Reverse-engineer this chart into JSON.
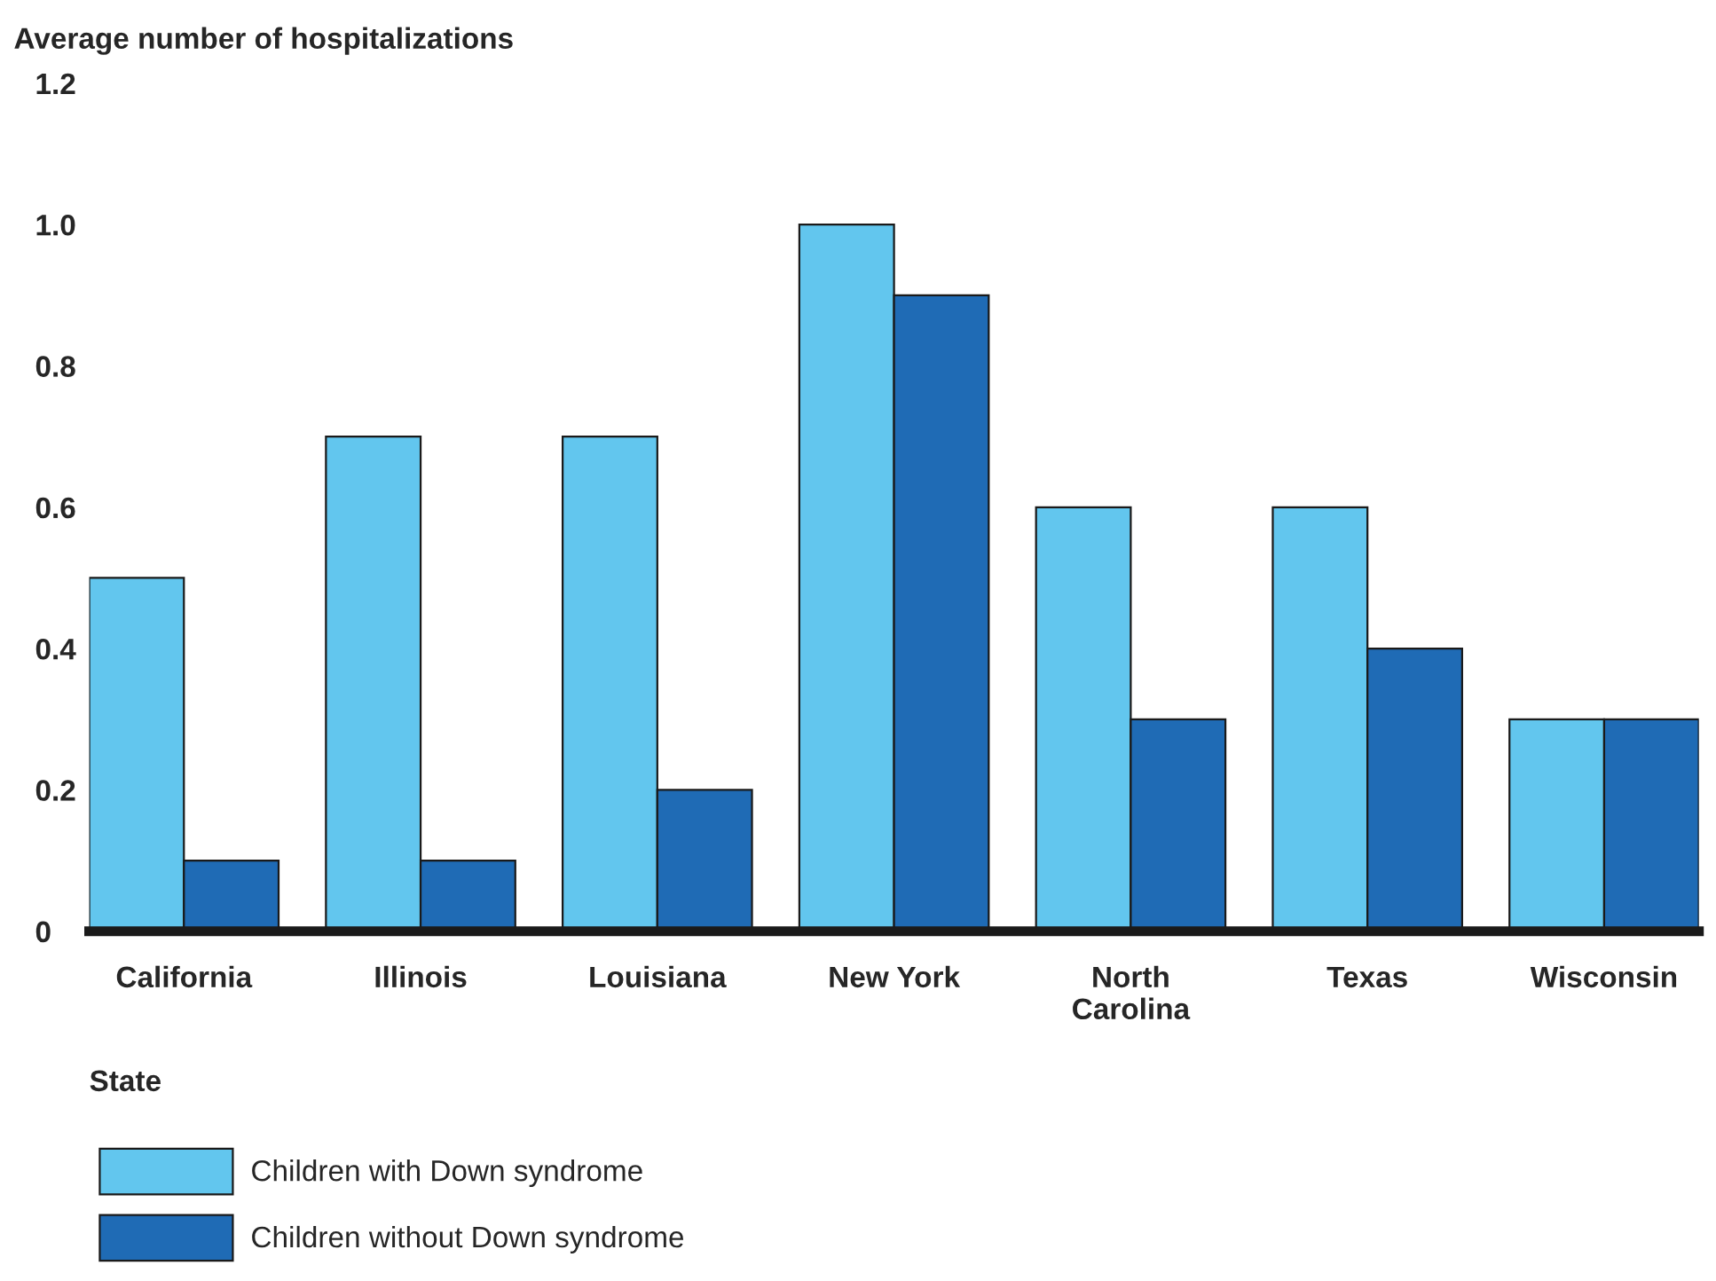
{
  "chart_data": {
    "type": "bar",
    "ylabel": "Average number of hospitalizations",
    "xlabel": "State",
    "categories": [
      "California",
      "Illinois",
      "Louisiana",
      "New York",
      "North\nCarolina",
      "Texas",
      "Wisconsin"
    ],
    "series": [
      {
        "name": "Children with Down syndrome",
        "color": "#62c6ee",
        "values": [
          0.5,
          0.7,
          0.7,
          1.0,
          0.6,
          0.6,
          0.3
        ]
      },
      {
        "name": "Children without Down syndrome",
        "color": "#1f6bb5",
        "values": [
          0.1,
          0.1,
          0.2,
          0.9,
          0.3,
          0.4,
          0.3
        ]
      }
    ],
    "ylim": [
      0,
      1.2
    ],
    "yticks": [
      0,
      {
        "value": 0.2,
        "label": "0.2"
      },
      {
        "value": 0.4,
        "label": "0.4"
      },
      {
        "value": 0.6,
        "label": "0.6"
      },
      {
        "value": 0.8,
        "label": "0.8"
      },
      {
        "value": 1.0,
        "label": "1.0"
      },
      {
        "value": 1.2,
        "label": "1.2"
      }
    ],
    "grid": false,
    "legend": "bottom"
  }
}
